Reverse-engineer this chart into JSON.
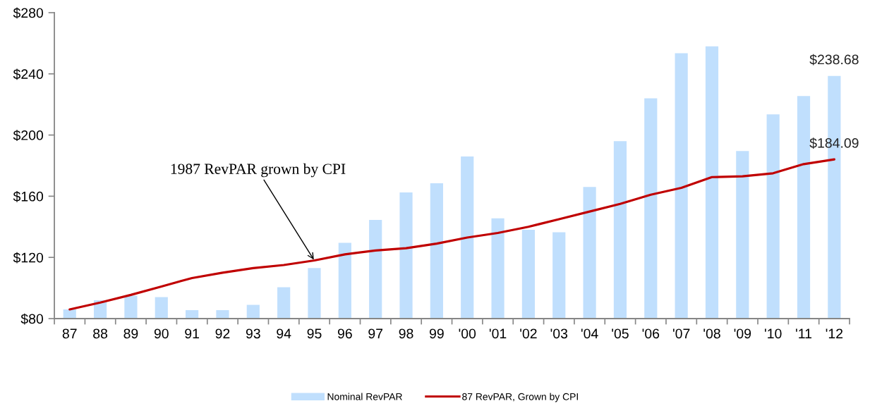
{
  "chart_data": {
    "type": "bar",
    "categories": [
      "87",
      "88",
      "89",
      "90",
      "91",
      "92",
      "93",
      "94",
      "95",
      "96",
      "97",
      "98",
      "99",
      "'00",
      "'01",
      "'02",
      "'03",
      "'04",
      "'05",
      "'06",
      "'07",
      "'08",
      "'09",
      "'10",
      "'11",
      "'12"
    ],
    "series": [
      {
        "name": "Nominal RevPAR",
        "color": "#c0dffd",
        "values": [
          86,
          92,
          95,
          94,
          85.5,
          85.5,
          89,
          100.5,
          113,
          129.5,
          144.5,
          162.5,
          168.5,
          186,
          145.5,
          138,
          136.5,
          166,
          196,
          224,
          253.5,
          258,
          189.5,
          213.5,
          225.5,
          238.68
        ],
        "value_labels": [
          null,
          null,
          null,
          null,
          null,
          null,
          null,
          null,
          null,
          null,
          null,
          null,
          null,
          null,
          null,
          null,
          null,
          null,
          null,
          null,
          null,
          null,
          null,
          null,
          null,
          "$238.68"
        ]
      },
      {
        "name": "87 RevPAR, Grown by CPI",
        "type": "line",
        "color": "#c00000",
        "values": [
          86,
          90.5,
          95.5,
          101,
          106.5,
          110,
          113,
          115,
          118,
          122,
          124.5,
          126,
          129,
          133,
          136,
          140,
          145,
          150,
          155,
          161,
          165.5,
          172.5,
          173,
          175,
          181,
          184.09
        ],
        "value_labels": [
          null,
          null,
          null,
          null,
          null,
          null,
          null,
          null,
          null,
          null,
          null,
          null,
          null,
          null,
          null,
          null,
          null,
          null,
          null,
          null,
          null,
          null,
          null,
          null,
          null,
          "$184.09"
        ]
      }
    ],
    "ylim": [
      80,
      280
    ],
    "yticks": [
      {
        "value": 80,
        "label": "$80"
      },
      {
        "value": 120,
        "label": "$120"
      },
      {
        "value": 160,
        "label": "$160"
      },
      {
        "value": 200,
        "label": "$200"
      },
      {
        "value": 240,
        "label": "$240"
      },
      {
        "value": 280,
        "label": "$280"
      }
    ],
    "annotations": [
      {
        "text": "1987 RevPAR grown by CPI",
        "x": "95",
        "y": 118
      }
    ],
    "legend": "bottom"
  }
}
